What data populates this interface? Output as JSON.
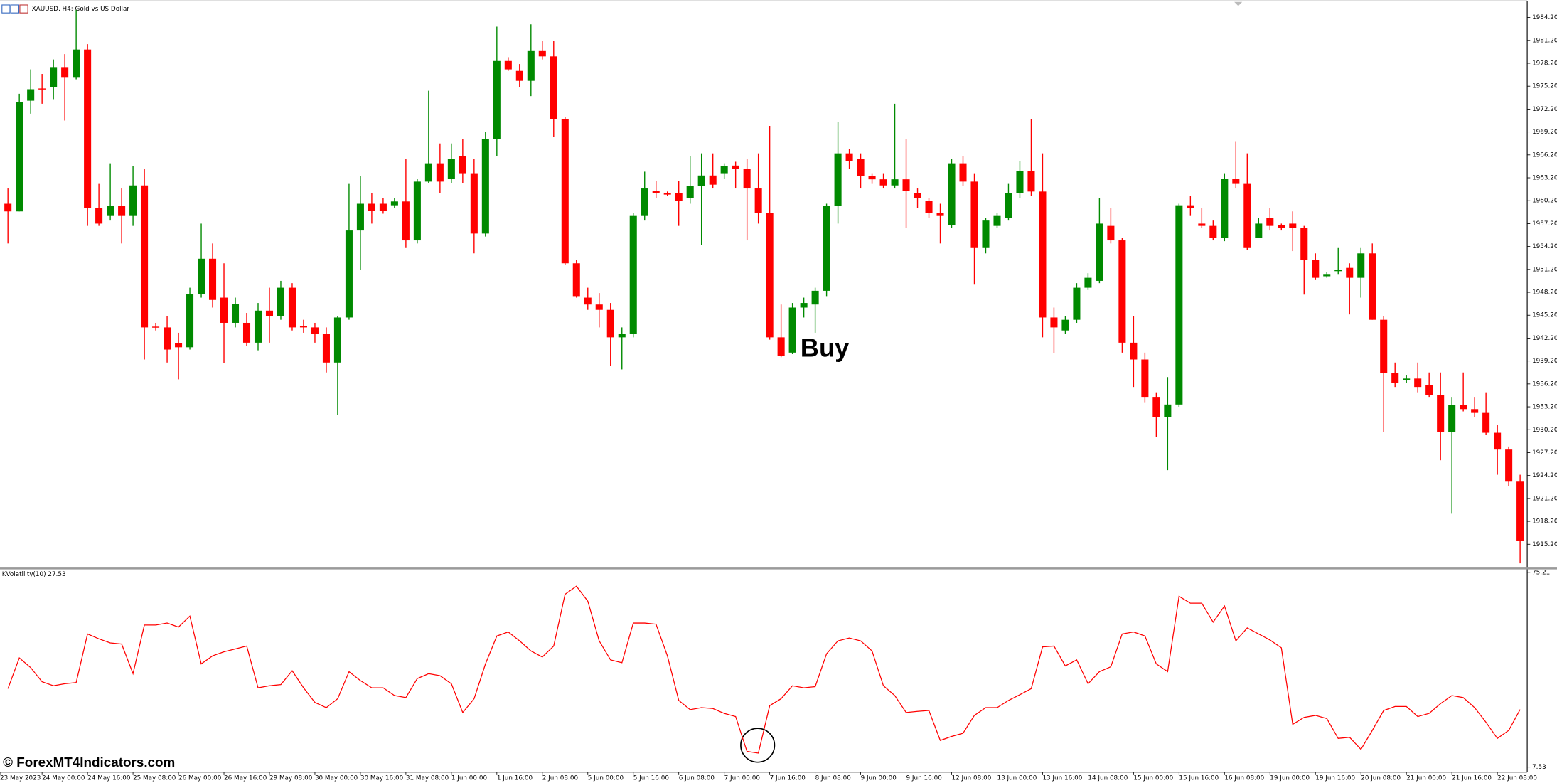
{
  "watermark": "© ForexMT4Indicators.com",
  "chart_data": [
    {
      "type": "candlestick",
      "title": "XAUUSD, H4:  Gold vs US Dollar",
      "annotation": "Buy",
      "up_color": "#008a00",
      "down_color": "#ff0000",
      "ylim": [
        1912.3,
        1986.1
      ],
      "yticks": [
        {
          "value": 1984.2,
          "label": "1984.20"
        },
        {
          "value": 1981.2,
          "label": "1981.20"
        },
        {
          "value": 1978.2,
          "label": "1978.20"
        },
        {
          "value": 1975.2,
          "label": "1975.20"
        },
        {
          "value": 1972.2,
          "label": "1972.20"
        },
        {
          "value": 1969.2,
          "label": "1969.20"
        },
        {
          "value": 1966.2,
          "label": "1966.20"
        },
        {
          "value": 1963.2,
          "label": "1963.20"
        },
        {
          "value": 1960.2,
          "label": "1960.20"
        },
        {
          "value": 1957.2,
          "label": "1957.20"
        },
        {
          "value": 1954.2,
          "label": "1954.20"
        },
        {
          "value": 1951.2,
          "label": "1951.20"
        },
        {
          "value": 1948.2,
          "label": "1948.20"
        },
        {
          "value": 1945.2,
          "label": "1945.20"
        },
        {
          "value": 1942.2,
          "label": "1942.20"
        },
        {
          "value": 1939.2,
          "label": "1939.20"
        },
        {
          "value": 1936.2,
          "label": "1936.20"
        },
        {
          "value": 1933.2,
          "label": "1933.20"
        },
        {
          "value": 1930.2,
          "label": "1930.20"
        },
        {
          "value": 1927.2,
          "label": "1927.20"
        },
        {
          "value": 1924.2,
          "label": "1924.20"
        },
        {
          "value": 1921.2,
          "label": "1921.20"
        },
        {
          "value": 1918.2,
          "label": "1918.20"
        },
        {
          "value": 1915.2,
          "label": "1915.20"
        }
      ],
      "x_tick_labels": [
        "23 May 2023",
        "24 May 00:00",
        "24 May 16:00",
        "25 May 08:00",
        "26 May 00:00",
        "26 May 16:00",
        "29 May 08:00",
        "30 May 00:00",
        "30 May 16:00",
        "31 May 08:00",
        "1 Jun 00:00",
        "1 Jun 16:00",
        "2 Jun 08:00",
        "5 Jun 00:00",
        "5 Jun 16:00",
        "6 Jun 08:00",
        "7 Jun 00:00",
        "7 Jun 16:00",
        "8 Jun 08:00",
        "9 Jun 00:00",
        "9 Jun 16:00",
        "12 Jun 08:00",
        "13 Jun 00:00",
        "13 Jun 16:00",
        "14 Jun 08:00",
        "15 Jun 00:00",
        "15 Jun 16:00",
        "16 Jun 08:00",
        "19 Jun 00:00",
        "19 Jun 16:00",
        "20 Jun 08:00",
        "21 Jun 00:00",
        "21 Jun 16:00",
        "22 Jun 08:00"
      ],
      "open": [
        1959.8,
        1958.8,
        1973.3,
        1974.9,
        1975.1,
        1977.7,
        1976.4,
        1980.0,
        1959.2,
        1958.2,
        1959.5,
        1958.2,
        1962.2,
        1943.7,
        1943.6,
        1941.5,
        1941.0,
        1948.0,
        1952.6,
        1947.5,
        1944.2,
        1944.2,
        1941.6,
        1945.8,
        1945.1,
        1948.8,
        1943.8,
        1943.6,
        1942.8,
        1939.0,
        1944.9,
        1956.3,
        1959.8,
        1959.8,
        1959.6,
        1960.1,
        1955.0,
        1962.7,
        1965.1,
        1963.1,
        1966.0,
        1963.8,
        1955.9,
        1968.3,
        1978.5,
        1977.2,
        1975.9,
        1979.8,
        1979.1,
        1970.9,
        1952.0,
        1947.5,
        1946.6,
        1945.9,
        1942.3,
        1942.8,
        1958.2,
        1961.5,
        1961.2,
        1961.2,
        1960.5,
        1962.1,
        1963.5,
        1963.8,
        1964.8,
        1964.4,
        1961.8,
        1958.6,
        1942.3,
        1940.3,
        1946.2,
        1946.6,
        1948.4,
        1959.5,
        1966.4,
        1965.7,
        1963.4,
        1963.0,
        1962.2,
        1963.0,
        1961.2,
        1960.2,
        1958.6,
        1957.0,
        1965.1,
        1962.7,
        1954.0,
        1956.9,
        1957.9,
        1961.2,
        1964.1,
        1961.4,
        1944.9,
        1943.2,
        1944.6,
        1948.8,
        1949.7,
        1956.9,
        1955.0,
        1941.6,
        1939.4,
        1934.5,
        1931.9,
        1933.5,
        1959.6,
        1957.2,
        1956.9,
        1955.3,
        1963.1,
        1962.4,
        1955.3,
        1957.9,
        1957.0,
        1957.2,
        1956.6,
        1952.4,
        1950.3,
        1951.0,
        1951.4,
        1950.1,
        1953.3,
        1944.6,
        1937.6,
        1936.7,
        1936.9,
        1936.0,
        1934.7,
        1929.9,
        1933.4,
        1932.9,
        1932.4,
        1929.8,
        1927.6,
        1923.4
      ],
      "high": [
        1961.8,
        1974.2,
        1977.4,
        1976.8,
        1978.7,
        1979.4,
        1985.2,
        1980.7,
        1962.4,
        1965.1,
        1961.8,
        1964.7,
        1964.4,
        1944.2,
        1945.1,
        1942.9,
        1948.8,
        1957.2,
        1954.6,
        1952.0,
        1947.5,
        1945.5,
        1946.8,
        1948.8,
        1949.7,
        1949.4,
        1944.6,
        1944.2,
        1943.6,
        1945.1,
        1962.4,
        1963.4,
        1961.2,
        1960.5,
        1960.5,
        1965.7,
        1963.1,
        1974.6,
        1967.7,
        1967.7,
        1968.3,
        1965.7,
        1969.2,
        1983.0,
        1979.0,
        1978.1,
        1983.3,
        1981.1,
        1981.1,
        1971.2,
        1952.4,
        1948.8,
        1948.1,
        1946.8,
        1943.6,
        1958.6,
        1964.0,
        1962.8,
        1961.4,
        1962.8,
        1966.0,
        1966.4,
        1966.4,
        1965.1,
        1965.3,
        1965.7,
        1966.4,
        1970.0,
        1946.6,
        1946.8,
        1947.5,
        1948.8,
        1959.8,
        1970.5,
        1967.0,
        1966.4,
        1963.8,
        1963.8,
        1972.9,
        1968.3,
        1961.8,
        1960.5,
        1959.8,
        1965.7,
        1966.0,
        1963.8,
        1957.9,
        1958.6,
        1962.4,
        1965.4,
        1970.9,
        1966.4,
        1946.2,
        1945.1,
        1949.4,
        1950.7,
        1960.5,
        1959.2,
        1955.3,
        1945.1,
        1940.3,
        1935.1,
        1937.1,
        1959.8,
        1960.8,
        1959.2,
        1957.6,
        1963.8,
        1968.0,
        1966.4,
        1957.9,
        1959.2,
        1957.2,
        1958.8,
        1956.9,
        1953.3,
        1950.9,
        1954.0,
        1952.0,
        1954.0,
        1954.6,
        1945.1,
        1939.0,
        1937.3,
        1939.0,
        1937.7,
        1937.7,
        1934.5,
        1937.7,
        1934.5,
        1935.1,
        1930.8,
        1928.0,
        1924.3
      ],
      "low": [
        1954.6,
        1958.8,
        1971.6,
        1972.9,
        1973.5,
        1970.7,
        1976.1,
        1956.9,
        1956.9,
        1957.6,
        1954.6,
        1956.9,
        1939.4,
        1943.2,
        1939.0,
        1936.8,
        1940.7,
        1947.5,
        1946.2,
        1938.9,
        1943.6,
        1941.2,
        1940.6,
        1941.6,
        1944.6,
        1943.2,
        1942.9,
        1941.6,
        1937.7,
        1932.1,
        1944.6,
        1951.1,
        1957.2,
        1958.5,
        1959.2,
        1954.0,
        1954.6,
        1962.5,
        1961.2,
        1962.5,
        1962.5,
        1953.3,
        1955.5,
        1966.0,
        1977.2,
        1975.1,
        1973.9,
        1978.7,
        1968.6,
        1951.8,
        1947.5,
        1945.9,
        1943.6,
        1938.6,
        1938.1,
        1942.3,
        1957.6,
        1960.5,
        1960.8,
        1956.9,
        1959.8,
        1954.4,
        1961.8,
        1963.1,
        1961.8,
        1955.0,
        1957.2,
        1942.0,
        1939.7,
        1940.1,
        1944.9,
        1942.9,
        1947.7,
        1957.2,
        1964.4,
        1961.8,
        1962.4,
        1961.8,
        1961.8,
        1956.6,
        1959.2,
        1957.9,
        1954.6,
        1956.6,
        1962.1,
        1949.2,
        1953.3,
        1956.6,
        1957.6,
        1960.5,
        1960.8,
        1942.3,
        1940.2,
        1942.8,
        1944.2,
        1948.5,
        1949.4,
        1954.6,
        1940.3,
        1935.8,
        1933.8,
        1929.2,
        1924.9,
        1933.2,
        1958.2,
        1956.6,
        1955.0,
        1954.9,
        1961.8,
        1953.7,
        1955.3,
        1956.3,
        1956.3,
        1953.6,
        1947.9,
        1949.8,
        1950.1,
        1950.6,
        1945.3,
        1947.5,
        1944.6,
        1929.9,
        1935.8,
        1936.3,
        1935.1,
        1934.5,
        1926.2,
        1919.2,
        1932.6,
        1931.9,
        1929.5,
        1924.3,
        1922.8,
        1912.7
      ],
      "close": [
        1958.8,
        1973.1,
        1974.8,
        1974.8,
        1977.7,
        1976.4,
        1980.0,
        1959.2,
        1957.2,
        1959.5,
        1958.2,
        1962.2,
        1943.6,
        1943.6,
        1940.7,
        1941.0,
        1948.0,
        1952.6,
        1947.2,
        1944.2,
        1946.7,
        1941.6,
        1945.8,
        1945.1,
        1948.8,
        1943.6,
        1943.6,
        1942.8,
        1939.0,
        1944.9,
        1956.3,
        1959.8,
        1958.9,
        1958.9,
        1960.1,
        1955.0,
        1962.7,
        1965.1,
        1962.7,
        1965.7,
        1963.8,
        1955.9,
        1968.3,
        1978.5,
        1977.4,
        1975.9,
        1979.8,
        1979.1,
        1970.9,
        1952.0,
        1947.7,
        1946.6,
        1945.9,
        1942.3,
        1942.8,
        1958.2,
        1961.8,
        1961.2,
        1961.0,
        1960.2,
        1962.1,
        1963.5,
        1962.3,
        1964.7,
        1964.4,
        1961.8,
        1958.6,
        1942.3,
        1939.9,
        1946.2,
        1946.8,
        1948.4,
        1959.5,
        1966.4,
        1965.4,
        1963.4,
        1963.0,
        1962.2,
        1963.0,
        1961.5,
        1960.5,
        1958.6,
        1958.2,
        1965.1,
        1962.7,
        1954.0,
        1957.6,
        1958.2,
        1961.2,
        1964.1,
        1961.4,
        1944.9,
        1943.6,
        1944.6,
        1948.8,
        1950.1,
        1957.2,
        1955.0,
        1941.6,
        1939.4,
        1934.5,
        1931.9,
        1933.5,
        1959.6,
        1959.2,
        1956.9,
        1955.3,
        1963.1,
        1962.4,
        1954.0,
        1957.2,
        1956.9,
        1956.6,
        1956.6,
        1952.4,
        1950.1,
        1950.6,
        1951.1,
        1950.1,
        1953.3,
        1944.6,
        1937.6,
        1936.3,
        1936.9,
        1935.8,
        1934.7,
        1929.9,
        1933.4,
        1932.9,
        1932.4,
        1929.8,
        1927.6,
        1923.4,
        1915.6
      ]
    },
    {
      "type": "line",
      "title": "KVolatility(10) 27.53",
      "color": "#ff0000",
      "ylim": [
        5.46,
        76.25
      ],
      "yticks": [
        75.21,
        7.53
      ],
      "values": [
        34.8,
        45.5,
        42.1,
        37.2,
        35.8,
        36.5,
        36.9,
        53.8,
        52.1,
        50.7,
        50.3,
        40.0,
        56.9,
        56.9,
        57.6,
        56.2,
        60.0,
        43.4,
        46.2,
        47.6,
        48.6,
        49.6,
        35.1,
        35.8,
        36.2,
        41.0,
        35.1,
        30.0,
        28.2,
        31.3,
        40.7,
        37.6,
        35.1,
        35.1,
        32.4,
        31.7,
        38.3,
        40.0,
        39.3,
        36.5,
        26.5,
        31.3,
        43.4,
        53.1,
        54.5,
        51.4,
        47.9,
        45.8,
        49.6,
        67.6,
        70.4,
        65.2,
        51.4,
        44.8,
        43.8,
        57.6,
        57.6,
        57.2,
        46.2,
        30.7,
        27.5,
        28.2,
        27.9,
        26.2,
        25.1,
        13.0,
        12.4,
        28.9,
        31.3,
        35.8,
        35.1,
        35.5,
        46.9,
        51.4,
        52.4,
        51.4,
        47.9,
        35.8,
        32.4,
        26.5,
        26.9,
        27.2,
        16.8,
        18.2,
        19.3,
        25.5,
        28.2,
        28.2,
        30.7,
        32.7,
        34.8,
        49.3,
        49.6,
        42.7,
        44.8,
        36.5,
        40.7,
        42.4,
        53.8,
        54.5,
        53.1,
        43.4,
        40.7,
        66.9,
        64.5,
        64.5,
        57.9,
        63.5,
        51.4,
        55.9,
        53.8,
        51.7,
        49.0,
        22.4,
        24.8,
        25.5,
        24.4,
        17.5,
        17.9,
        13.7,
        20.3,
        27.2,
        28.6,
        28.6,
        25.1,
        26.2,
        29.6,
        32.4,
        31.7,
        28.2,
        23.1,
        17.5,
        20.3,
        27.53
      ]
    }
  ]
}
